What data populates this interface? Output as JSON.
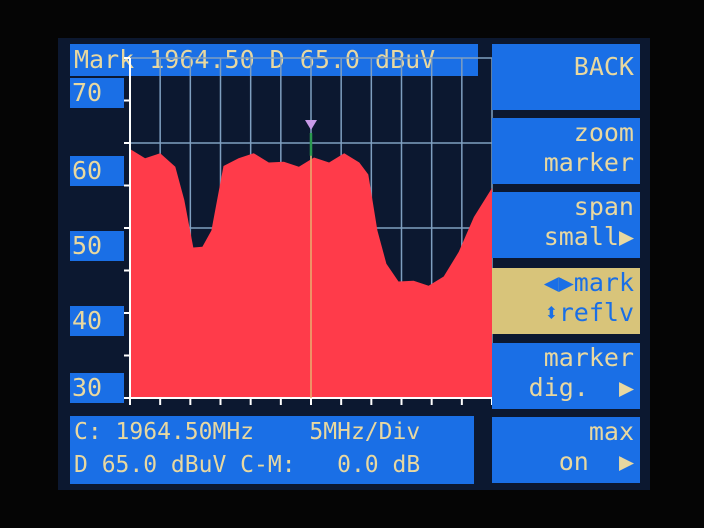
{
  "header": {
    "text": "Mark 1964.50 D 65.0 dBuV"
  },
  "y_labels": [
    "70",
    "60",
    "50",
    "40",
    "30"
  ],
  "buttons": [
    {
      "line1": "BACK",
      "line2": ""
    },
    {
      "line1": "zoom",
      "line2": "marker"
    },
    {
      "line1": "span",
      "line2": "small▶"
    },
    {
      "line1": "◀▶mark",
      "line2": "⬍reflv",
      "selected": true
    },
    {
      "line1": "marker",
      "line2": "dig.  ▶"
    },
    {
      "line1": "max",
      "line2": "on  ▶"
    }
  ],
  "info": {
    "line1": "C: 1964.50MHz    5MHz/Div",
    "line2": "D 65.0 dBuV C-M:   0.0 dB"
  },
  "colors": {
    "trace": "#ff3b4a",
    "panel": "#1a6fe6",
    "selected": "#d8c47a",
    "text": "#e8d8a0",
    "marker": "#c89ae8"
  },
  "chart_data": {
    "type": "area",
    "ylim": [
      30,
      70
    ],
    "center_mhz": 1964.5,
    "mhz_per_div": 5,
    "divisions": 12,
    "marker_mhz": 1964.5,
    "x": [
      1934.5,
      1937,
      1939.5,
      1942,
      1943.5,
      1945,
      1946.5,
      1948,
      1950,
      1952.5,
      1955,
      1957.5,
      1960,
      1962.5,
      1965,
      1967.5,
      1970,
      1972.5,
      1974,
      1975.5,
      1977,
      1979,
      1981.5,
      1984,
      1986.5,
      1989,
      1991.5,
      1994.5
    ],
    "y": [
      59,
      58.5,
      58.5,
      57.5,
      53,
      48,
      47.5,
      50,
      57,
      58.5,
      58.5,
      58,
      57.5,
      57.5,
      58,
      58,
      58.5,
      58,
      56,
      50,
      45.5,
      44,
      43.5,
      43.5,
      44,
      47.5,
      51,
      55
    ]
  }
}
